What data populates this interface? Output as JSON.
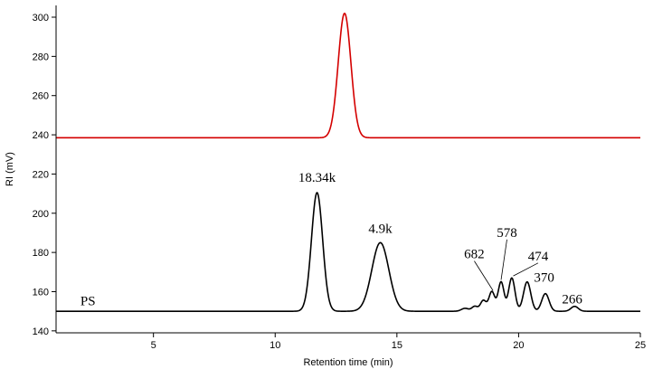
{
  "chart_data": {
    "type": "line",
    "title": "",
    "xlabel": "Retention time (min)",
    "ylabel": "RI (mV)",
    "xlim": [
      1,
      25
    ],
    "ylim": [
      139,
      306
    ],
    "x_ticks": [
      5,
      10,
      15,
      20,
      25
    ],
    "y_ticks": [
      140,
      160,
      180,
      200,
      220,
      240,
      260,
      280,
      300
    ],
    "grid": false,
    "legend": "none",
    "series": [
      {
        "color": "#d40000",
        "baseline": 238.5,
        "x_start": 1.0,
        "peaks": [
          {
            "x": 12.85,
            "height": 63.5,
            "sigma": 0.26
          }
        ]
      },
      {
        "label": "PS",
        "color": "#000000",
        "baseline": 150.0,
        "x_start": 1.0,
        "peaks": [
          {
            "x": 11.72,
            "height": 60.5,
            "sigma": 0.23
          },
          {
            "x": 14.32,
            "height": 35.0,
            "sigma": 0.35
          },
          {
            "x": 17.8,
            "height": 1.5,
            "sigma": 0.15
          },
          {
            "x": 18.2,
            "height": 2.5,
            "sigma": 0.12
          },
          {
            "x": 18.55,
            "height": 5.5,
            "sigma": 0.12
          },
          {
            "x": 18.9,
            "height": 10.0,
            "sigma": 0.12
          },
          {
            "x": 19.28,
            "height": 15.0,
            "sigma": 0.12
          },
          {
            "x": 19.72,
            "height": 17.0,
            "sigma": 0.13
          },
          {
            "x": 20.35,
            "height": 15.0,
            "sigma": 0.15
          },
          {
            "x": 21.1,
            "height": 9.0,
            "sigma": 0.15
          },
          {
            "x": 22.3,
            "height": 2.5,
            "sigma": 0.15
          }
        ]
      }
    ],
    "annotations": [
      {
        "text": "18.34k",
        "x": 11.72,
        "y": 216
      },
      {
        "text": "4.9k",
        "x": 14.32,
        "y": 190
      },
      {
        "text": "682",
        "x": 18.18,
        "y": 177,
        "pointer": [
          18.95,
          160.5
        ]
      },
      {
        "text": "578",
        "x": 19.52,
        "y": 188,
        "pointer": [
          19.28,
          166
        ]
      },
      {
        "text": "474",
        "x": 20.8,
        "y": 176,
        "pointer": [
          19.78,
          168
        ]
      },
      {
        "text": "370",
        "x": 21.05,
        "y": 165
      },
      {
        "text": "266",
        "x": 22.2,
        "y": 154
      },
      {
        "text": "PS",
        "x": 2.0,
        "y": 153,
        "anchor": "start"
      }
    ]
  }
}
